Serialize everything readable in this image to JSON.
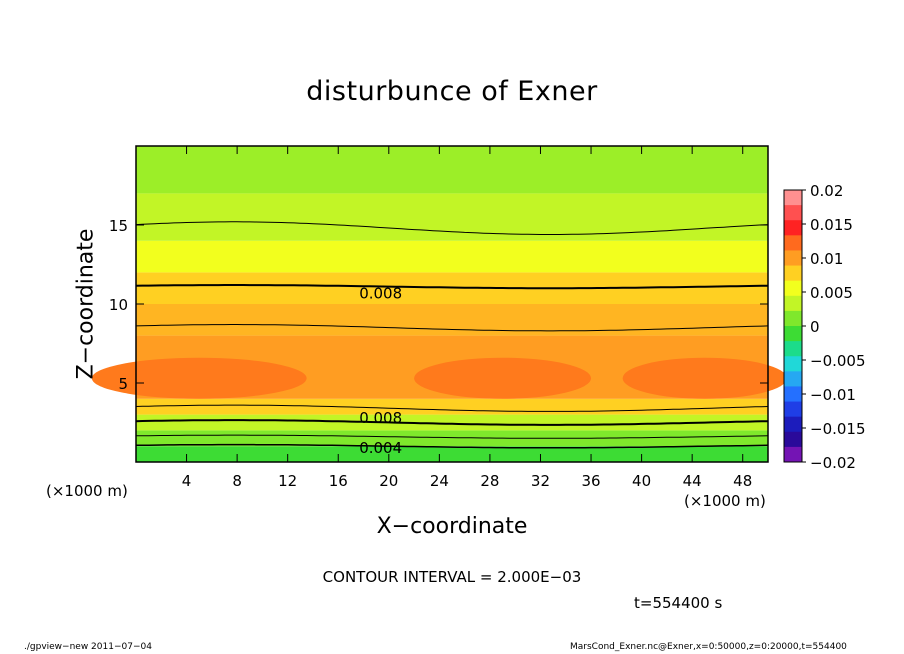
{
  "chart_data": {
    "type": "heatmap",
    "title": "disturbunce of Exner",
    "xlabel": "X−coordinate",
    "ylabel": "Z−coordinate",
    "x_unit": "(×1000 m)",
    "y_unit": "(×1000 m)",
    "xlim": [
      0,
      50
    ],
    "ylim": [
      0,
      20
    ],
    "x_ticks": [
      "4",
      "8",
      "12",
      "16",
      "20",
      "24",
      "28",
      "32",
      "36",
      "40",
      "44",
      "48"
    ],
    "y_ticks": [
      "5",
      "10",
      "15"
    ],
    "colorbar": {
      "range": [
        -0.02,
        0.02
      ],
      "labels": [
        "0.02",
        "0.015",
        "0.01",
        "0.005",
        "0",
        "−0.005",
        "−0.01",
        "−0.015",
        "−0.02"
      ],
      "colors": [
        "#ff9090",
        "#ff5050",
        "#ff2222",
        "#ff6a1e",
        "#ff9d22",
        "#ffd022",
        "#f2ff1e",
        "#c2f526",
        "#7fe82c",
        "#3ddc34",
        "#1cdc8a",
        "#20d8d8",
        "#26a8f2",
        "#2470ff",
        "#1f3ee6",
        "#1c1cbc",
        "#2a0a9a",
        "#7414b4"
      ]
    },
    "contour_labels": [
      "0.008",
      "0.008",
      "0.004"
    ],
    "contour_interval_text": "CONTOUR INTERVAL = 2.000E−03",
    "time_text": "t=554400 s"
  },
  "footer": {
    "left": "./gpview−new   2011−07−04",
    "right": "MarsCond_Exner.nc@Exner,x=0:50000,z=0:20000,t=554400"
  }
}
